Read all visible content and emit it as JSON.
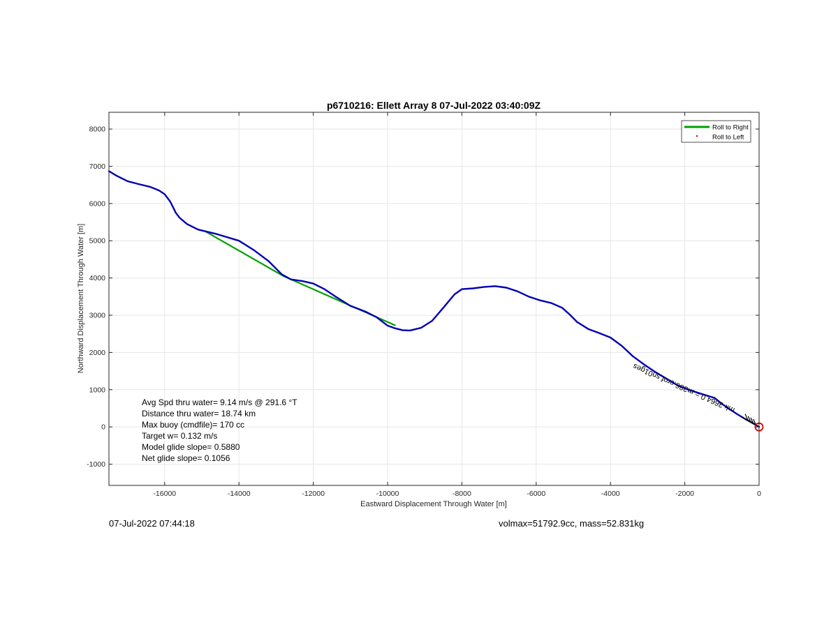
{
  "chart_data": {
    "type": "line",
    "title": "p6710216: Ellett Array 8 07-Jul-2022 03:40:09Z",
    "xlabel": "Eastward Displacement Through Water [m]",
    "ylabel": "Northward Displacement Through Water [m]",
    "xlim": [
      -17500,
      0
    ],
    "ylim": [
      -1570,
      8450
    ],
    "xticks": [
      -16000,
      -14000,
      -12000,
      -10000,
      -8000,
      -6000,
      -4000,
      -2000,
      0
    ],
    "yticks": [
      -1000,
      0,
      1000,
      2000,
      3000,
      4000,
      5000,
      6000,
      7000,
      8000
    ],
    "grid": true,
    "legend_position": "top-right",
    "legend": [
      {
        "label": "Roll to Right",
        "color": "#00a000",
        "style": "line"
      },
      {
        "label": "Roll to Left",
        "color": "#ff0000",
        "style": "dot"
      }
    ],
    "series": [
      {
        "name": "Roll to Right",
        "color": "#00a000",
        "x": [
          -14900,
          -12800,
          -9800
        ],
        "y": [
          5250,
          4050,
          2730
        ]
      },
      {
        "color": "#0000b4",
        "x": [
          -17500,
          -17300,
          -17000,
          -16700,
          -16400,
          -16150,
          -16000,
          -15850,
          -15700,
          -15600,
          -15400,
          -15100,
          -14600,
          -14000,
          -13600,
          -13200,
          -12850,
          -12600,
          -12300,
          -12000,
          -11700,
          -11400,
          -11000,
          -10600,
          -10300,
          -10000,
          -9800,
          -9600,
          -9400,
          -9100,
          -8800,
          -8500,
          -8200,
          -8000,
          -7700,
          -7400,
          -7100,
          -6800,
          -6500,
          -6200,
          -5900,
          -5600,
          -5300,
          -5100,
          -4900,
          -4600,
          -4300,
          -4000,
          -3700,
          -3400,
          -3100,
          -2800,
          -2500,
          -2200,
          -1900,
          -1500,
          -1200,
          -1000,
          -800,
          -600,
          -400,
          -200,
          -100,
          0
        ],
        "y": [
          6870,
          6750,
          6600,
          6520,
          6450,
          6350,
          6250,
          6050,
          5750,
          5620,
          5450,
          5300,
          5180,
          5000,
          4750,
          4450,
          4100,
          3960,
          3920,
          3850,
          3700,
          3500,
          3250,
          3100,
          2950,
          2720,
          2650,
          2600,
          2590,
          2660,
          2850,
          3200,
          3560,
          3700,
          3720,
          3760,
          3780,
          3740,
          3640,
          3500,
          3400,
          3330,
          3200,
          3020,
          2820,
          2630,
          2520,
          2400,
          2180,
          1900,
          1680,
          1480,
          1300,
          1120,
          1000,
          870,
          780,
          620,
          480,
          350,
          230,
          120,
          60,
          0
        ]
      }
    ],
    "annotations": [
      {
        "text": "‮seg10ns foro.683m = 0.4663 km‬",
        "x": -2000,
        "y": 1100
      }
    ],
    "end_marker": {
      "x": 0,
      "y": 0,
      "color": "#dd0000"
    },
    "stats_lines": [
      "Avg Spd thru water=  9.14 m/s @ 291.6 °T",
      "Distance thru water= 18.74 km",
      "Max buoy (cmdfile)= 170 cc",
      "Target w= 0.132 m/s",
      "Model glide slope= 0.5880",
      "Net glide slope= 0.1056"
    ]
  },
  "footer": {
    "left": "07-Jul-2022 07:44:18",
    "right": "volmax=51792.9cc, mass=52.831kg"
  }
}
